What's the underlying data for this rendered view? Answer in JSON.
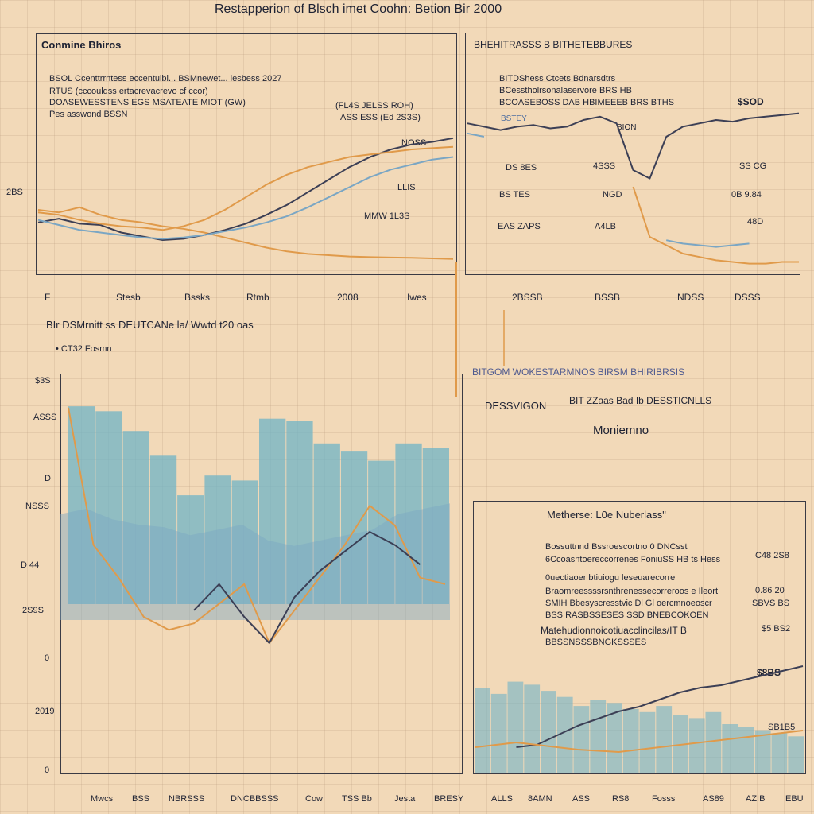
{
  "main_title": "Restapperion of Blsch imet Coohn: Betion Bir 2000",
  "colors": {
    "background": "#f2d9b8",
    "orange": "#e09a4a",
    "dark": "#3c3f55",
    "blue": "#7aa6c4",
    "teal": "#6fb3c6"
  },
  "chart_data": [
    {
      "type": "line",
      "title": "Conmine Bhiros",
      "notes": [
        "BSOL Ccenttrrntess eccentulbl... BSMnewet... iesbess 2027",
        "RTUS (cccouldss ertacrevacrevo cf ccor)",
        "DOASEWESSTENS EGS MSATEATE MIOT (GW)",
        "Pes  asswond  BSSN"
      ],
      "right_labels": [
        "(FL4S  JELSS  ROH)",
        "ASSIESS  (Ed 2S3S)",
        "NOSS",
        "LLIS",
        "MMW  1L3S"
      ],
      "y_tick": "2BS",
      "axis_labels": [
        "F",
        "Stesb",
        "Bssks",
        "Rtmb",
        "2008",
        "Iwes"
      ],
      "x": [
        0,
        1,
        2,
        3,
        4,
        5,
        6,
        7,
        8,
        9,
        10,
        11,
        12,
        13,
        14,
        15,
        16,
        17,
        18,
        19,
        20
      ],
      "series": [
        {
          "color": "orange",
          "values": [
            38,
            36,
            40,
            34,
            30,
            28,
            25,
            23,
            20,
            16,
            12,
            8,
            5,
            3,
            2,
            1,
            0.5,
            0.2,
            0,
            -0.5,
            -1
          ]
        },
        {
          "color": "dark",
          "values": [
            28,
            31,
            27,
            26,
            20,
            17,
            14,
            15,
            18,
            22,
            27,
            34,
            42,
            52,
            62,
            72,
            80,
            86,
            90,
            92,
            95
          ]
        },
        {
          "color": "blue",
          "values": [
            30,
            26,
            22,
            20,
            18,
            16,
            15,
            16,
            18,
            21,
            24,
            28,
            33,
            40,
            48,
            56,
            64,
            70,
            74,
            78,
            80
          ]
        },
        {
          "color": "orange",
          "values": [
            36,
            34,
            30,
            27,
            25,
            24,
            22,
            25,
            30,
            38,
            48,
            58,
            66,
            72,
            76,
            80,
            82,
            84,
            86,
            87,
            88
          ]
        }
      ],
      "ylim": [
        -10,
        110
      ]
    },
    {
      "type": "line",
      "title": "BHEHITRASSS B  BITHETEBBURES",
      "notes": [
        "BITDShess Ctcets Bdnarsdtrs",
        "BCesstholrsonalaservore BRS HB",
        "BCOASEBOSS DAB HBIMEEEB BRS BTHS"
      ],
      "value_labels": [
        "$SOD",
        "BSTEY",
        "BION",
        "DS 8ES",
        "4SSS",
        "SS  CG",
        "BS TES",
        "NGD",
        "0B 9.84",
        "EAS ZAPS",
        "A4LB",
        "48D"
      ],
      "axis_labels": [
        "2BSSB",
        "BSSB",
        "NDSS",
        "DSSS"
      ],
      "x": [
        0,
        1,
        2,
        3,
        4,
        5,
        6,
        7,
        8,
        9,
        10,
        11,
        12,
        13,
        14,
        15,
        16,
        17,
        18,
        19,
        20
      ],
      "series": [
        {
          "color": "dark",
          "values": [
            88,
            86,
            84,
            86,
            87,
            85,
            86,
            90,
            92,
            88,
            60,
            55,
            80,
            86,
            88,
            90,
            89,
            91,
            92,
            93,
            94
          ]
        },
        {
          "color": "orange",
          "values": [
            null,
            null,
            null,
            null,
            null,
            null,
            null,
            null,
            null,
            null,
            50,
            20,
            15,
            10,
            8,
            6,
            5,
            4,
            4,
            5,
            5
          ]
        },
        {
          "color": "blue",
          "values": [
            82,
            80,
            null,
            null,
            null,
            null,
            null,
            null,
            null,
            null,
            null,
            null,
            18,
            16,
            15,
            14,
            15,
            16,
            null,
            null,
            null
          ]
        }
      ],
      "ylim": [
        0,
        100
      ]
    },
    {
      "type": "area",
      "title": "BIr DSMrnitt ss DEUTCANe la/ Wwtd t20 oas",
      "subtitle": "• CT32  Fosmn",
      "y_ticks": [
        "$3S",
        "ASSS",
        "D",
        "NSSS",
        "D  44",
        "2S9S",
        "0",
        "2019",
        "0"
      ],
      "x_labels": [
        "Mwcs",
        "BSS",
        "NBRSSS",
        "DNCBBSSS",
        "Cow",
        "TSS Bb",
        "Jesta",
        "BRESY"
      ],
      "bar_values": [
        80,
        78,
        70,
        60,
        44,
        52,
        50,
        75,
        74,
        65,
        62,
        58,
        65,
        63
      ],
      "area_values": [
        40,
        42,
        38,
        36,
        35,
        32,
        34,
        36,
        30,
        28,
        30,
        32,
        34,
        40,
        42,
        44
      ],
      "series": [
        {
          "color": "orange",
          "values": [
            82,
            40,
            30,
            18,
            14,
            16,
            22,
            28,
            10,
            20,
            30,
            40,
            52,
            46,
            30,
            28
          ]
        },
        {
          "color": "dark",
          "values": [
            null,
            null,
            null,
            null,
            null,
            20,
            28,
            18,
            10,
            24,
            32,
            38,
            44,
            40,
            34,
            null
          ]
        }
      ],
      "ylim": [
        0,
        90
      ]
    },
    {
      "type": "area",
      "title": "Metherse: L0e Nuberlass\"",
      "header_top": "BITGOM WOKESTARMNOS BIRSM BHIRIBRSIS",
      "header_left": "DESSVIGON",
      "header_mid": "BIT ZZaas Bad Ib DESSTICNLLS",
      "header_sub": "Moniemno",
      "notes": [
        "Bossuttnnd Bssroescortno 0 DNCsst",
        "6Ccoasntoereccorrenes FoniuSS HB ts Hess",
        "0uectiaoer btiuiogu leseuarecorre",
        "Braomreessssrsnthrenessecorreroos e Ileort",
        "SMIH Bbesyscresstvic Dl Gl oercmnoeoscr",
        "BSS RASBSSESES SSD BNEBCOKOEN",
        "Matehudionnoicotiuacclincilas/IT B",
        "BBSSNSSSBNGKSSSES"
      ],
      "right_labels": [
        "C48 2S8",
        "0.86 20",
        "SBVS BS",
        "$5 BS2",
        "$8BS",
        "SB1B5"
      ],
      "axis_labels": [
        "ALLS",
        "8AMN",
        "ASS",
        "RS8",
        "Fosss",
        "AS89",
        "AZIB",
        "EBU"
      ],
      "bar_values": [
        28,
        26,
        30,
        29,
        27,
        25,
        22,
        24,
        23,
        21,
        20,
        22,
        19,
        18,
        20,
        16,
        15,
        14,
        13,
        12
      ],
      "series": [
        {
          "color": "dark",
          "values": [
            null,
            null,
            20,
            22,
            30,
            38,
            44,
            50,
            54,
            60,
            66,
            70,
            72,
            76,
            80,
            84,
            88
          ]
        },
        {
          "color": "orange",
          "values": [
            20,
            22,
            24,
            22,
            20,
            18,
            17,
            16,
            18,
            20,
            22,
            24,
            26,
            28,
            30,
            32,
            34
          ]
        }
      ],
      "ylim": [
        0,
        100
      ]
    }
  ]
}
